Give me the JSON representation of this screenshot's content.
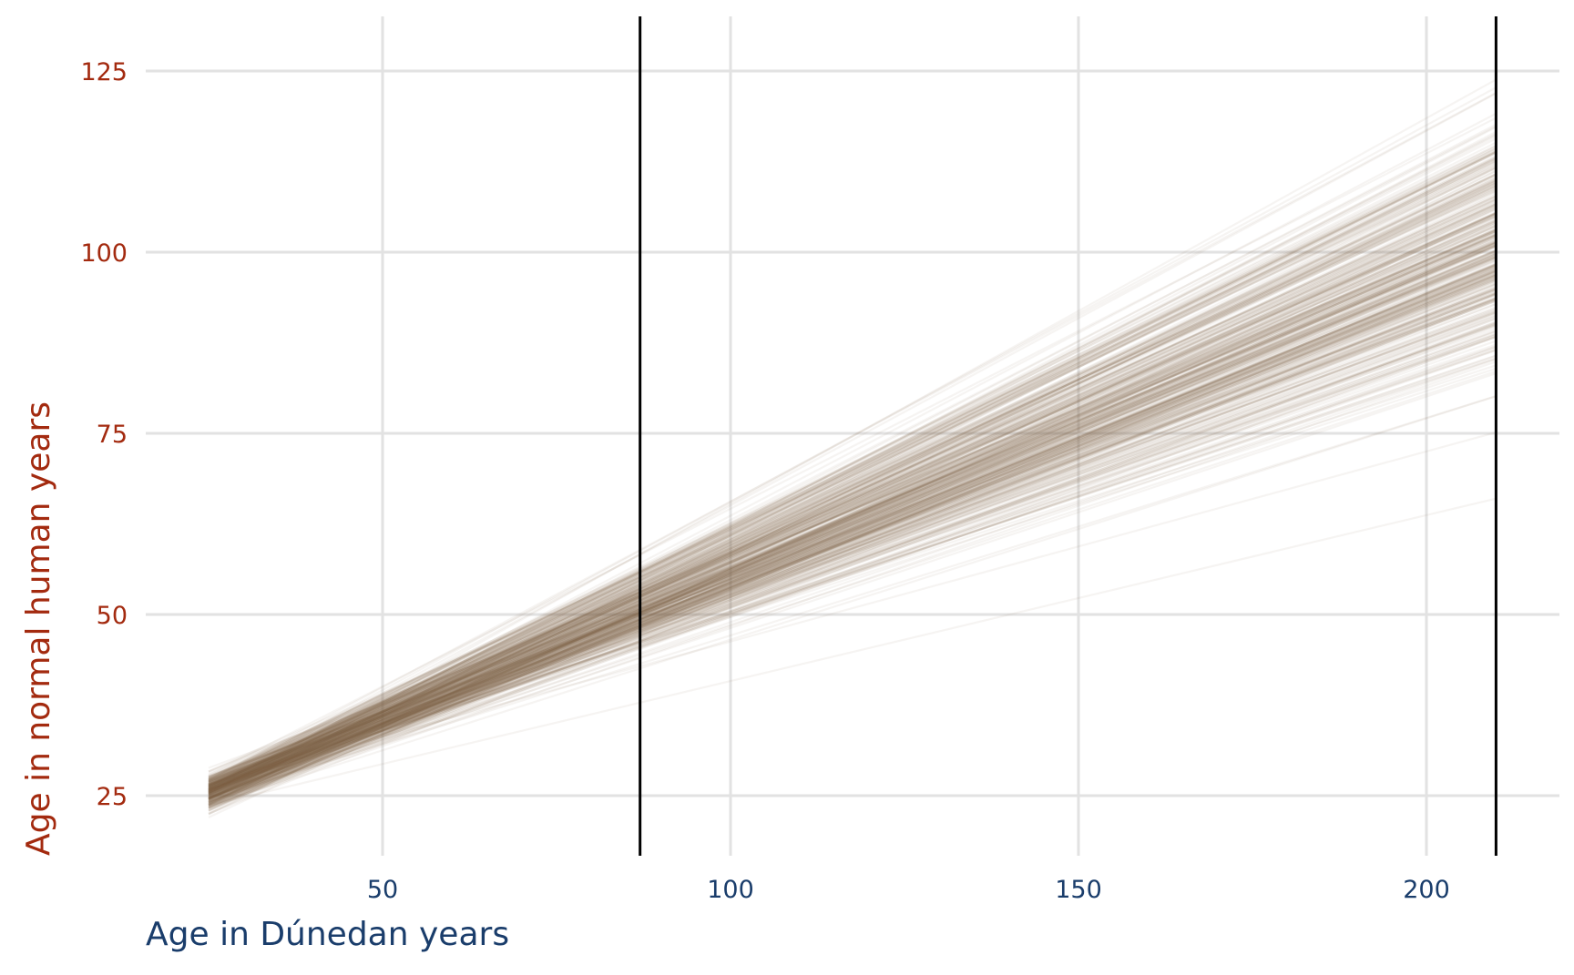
{
  "colors": {
    "x_axis_text": "#1a3d6b",
    "y_axis_text": "#a32a0f",
    "line_color": "#7a6a4a",
    "gridline": "#e2e2e2",
    "reference_line": "#000000",
    "background": "#ffffff"
  },
  "chart_data": {
    "type": "line",
    "xlabel": "Age in Dúnedan years",
    "ylabel": "Age in normal human years",
    "x_ticks": [
      50,
      100,
      150,
      200
    ],
    "y_ticks": [
      25,
      50,
      75,
      100,
      125
    ],
    "xlim": [
      16,
      210
    ],
    "ylim": [
      20,
      128
    ],
    "grid": true,
    "reference_lines_x": [
      87,
      210
    ],
    "series_description": "many semi-transparent posterior draws of a linear conversion",
    "x_start": 25,
    "x_end": 210,
    "y_at_start_range": [
      22,
      29
    ],
    "y_at_end_range": [
      66,
      127
    ],
    "draws": 400
  }
}
